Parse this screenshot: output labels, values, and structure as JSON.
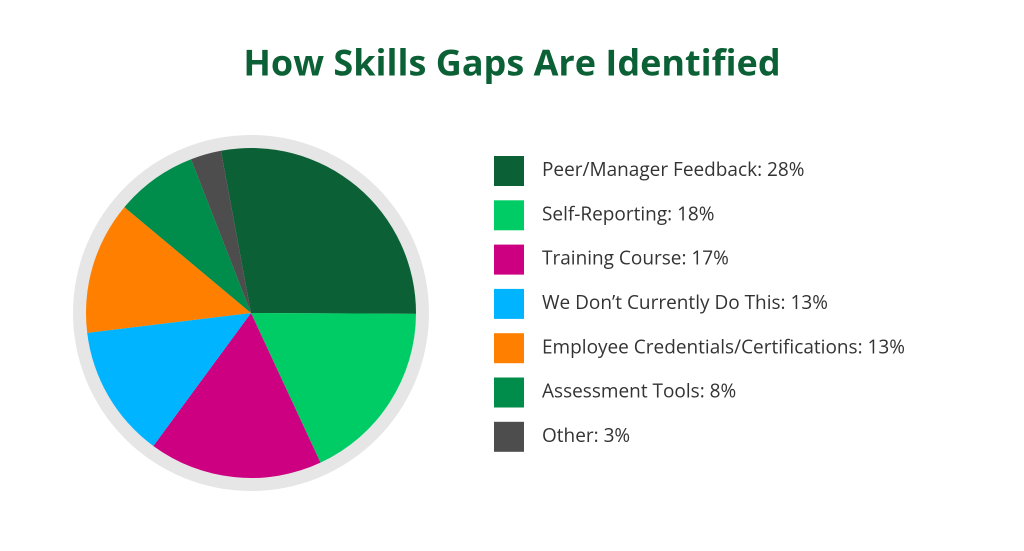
{
  "chart_data": {
    "type": "pie",
    "title": "How Skills Gaps Are Identified",
    "categories": [
      "Peer/Manager Feedback: 28%",
      "Self-Reporting: 18%",
      "Training Course: 17%",
      "We Don’t Currently Do This: 13%",
      "Employee Credentials/Certifications: 13%",
      "Assessment Tools: 8%",
      "Other: 3%"
    ],
    "values": [
      28,
      18,
      17,
      13,
      13,
      8,
      3
    ],
    "colors": [
      "#0b6135",
      "#00cc66",
      "#cc0080",
      "#00b4ff",
      "#ff8000",
      "#008c4b",
      "#4d4d4d"
    ]
  }
}
